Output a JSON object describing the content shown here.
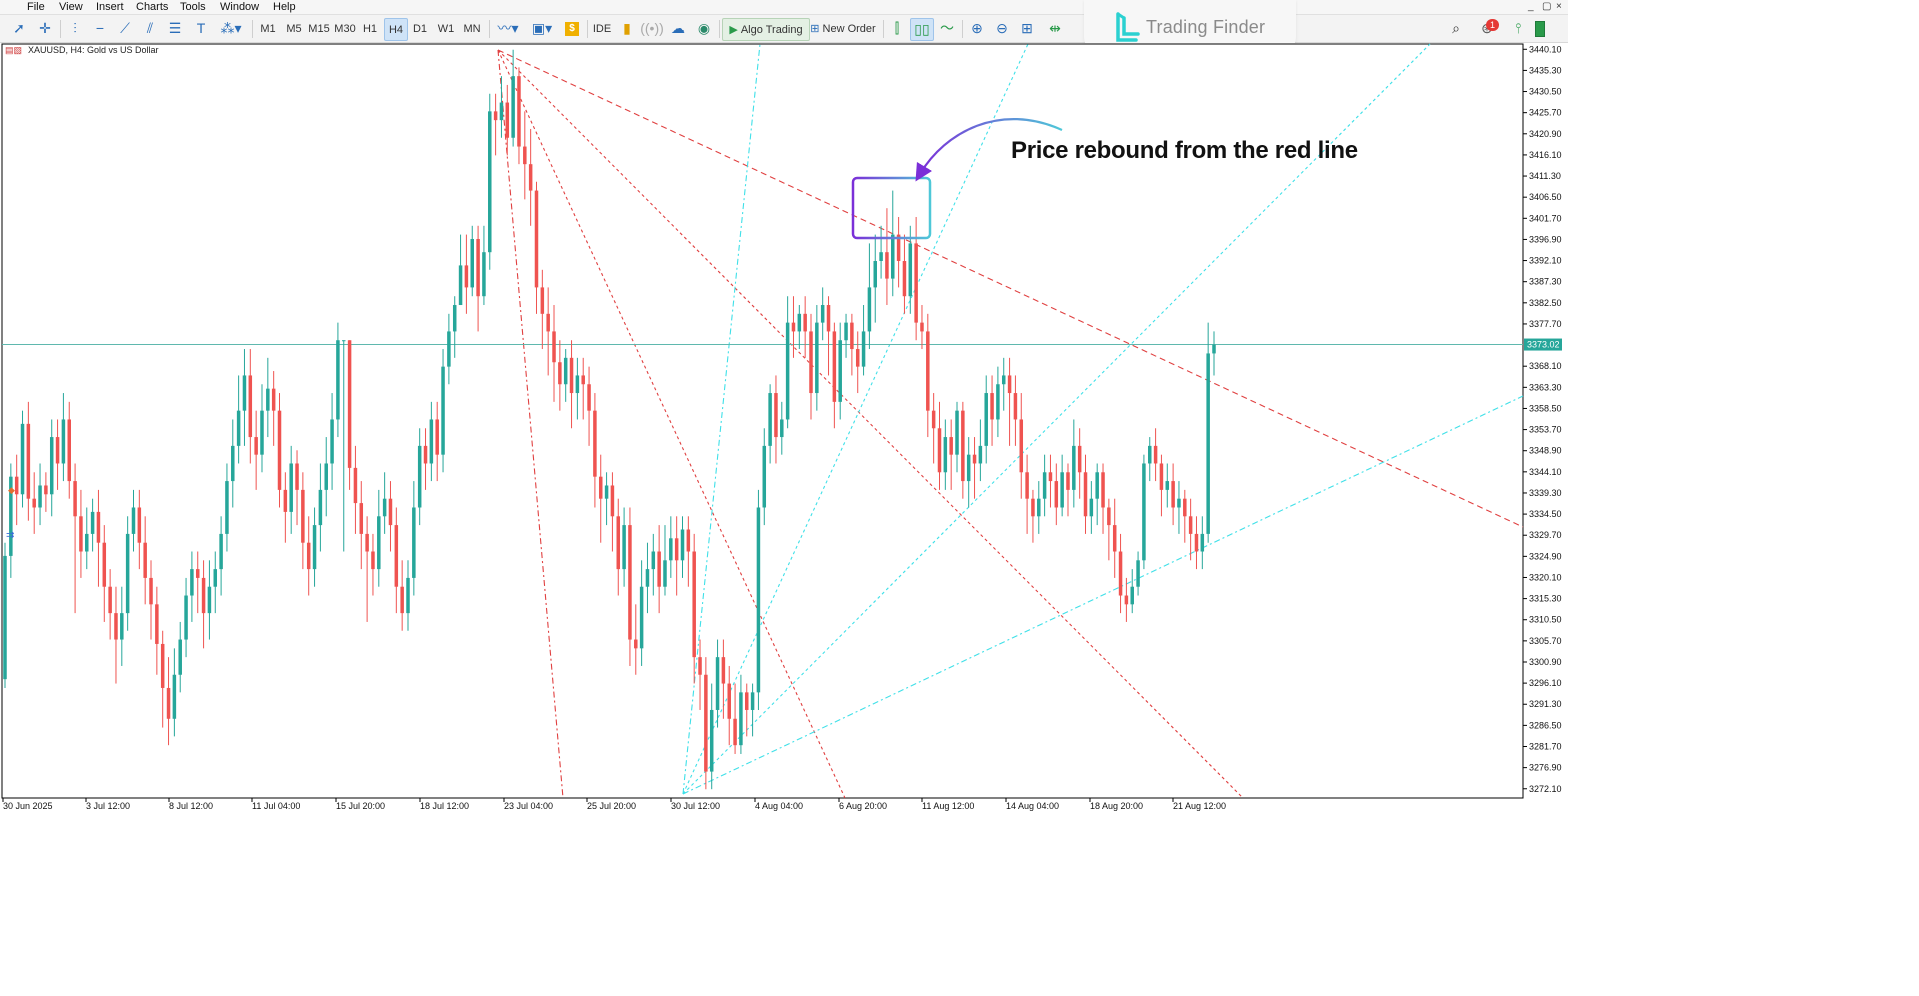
{
  "menu": [
    "File",
    "View",
    "Insert",
    "Charts",
    "Tools",
    "Window",
    "Help"
  ],
  "window_controls": [
    "_",
    "▢",
    "×"
  ],
  "toolbar": {
    "timeframes": [
      "M1",
      "M5",
      "M15",
      "M30",
      "H1",
      "H4",
      "D1",
      "W1",
      "MN"
    ],
    "selected_timeframe": "H4",
    "ide_label": "IDE",
    "algo_label": "Algo Trading",
    "order_label": "New Order",
    "notification_count": "1"
  },
  "brand": {
    "name": "Trading Finder",
    "color": "#2bd1d1"
  },
  "chart_header": {
    "symbol_text": "XAUUSD, H4:  Gold vs US Dollar"
  },
  "annotation": {
    "text": "Price rebound from the red line"
  },
  "colors": {
    "bull": "#26a69a",
    "bear": "#ef5350",
    "red_lines": "#e04040",
    "cyan_lines": "#3fe0e8",
    "hline": "#5fb8ae",
    "price_tag_bg": "#26a69a",
    "box_left": "#7b2fd8",
    "box_right": "#4ec8d8"
  },
  "chart_data": {
    "type": "candlestick",
    "symbol": "XAUUSD",
    "timeframe": "H4",
    "y_ticks": [
      "3440.10",
      "3435.30",
      "3430.50",
      "3425.70",
      "3420.90",
      "3416.10",
      "3411.30",
      "3406.50",
      "3401.70",
      "3396.90",
      "3392.10",
      "3387.30",
      "3382.50",
      "3377.70",
      "3373.02",
      "3368.10",
      "3363.30",
      "3358.50",
      "3353.70",
      "3348.90",
      "3344.10",
      "3339.30",
      "3334.50",
      "3329.70",
      "3324.90",
      "3320.10",
      "3315.30",
      "3310.50",
      "3305.70",
      "3300.90",
      "3296.10",
      "3291.30",
      "3286.50",
      "3281.70",
      "3276.90",
      "3272.10"
    ],
    "x_ticks": [
      "30 Jun 2025",
      "3 Jul 12:00",
      "8 Jul 12:00",
      "11 Jul 04:00",
      "15 Jul 20:00",
      "18 Jul 12:00",
      "23 Jul 04:00",
      "25 Jul 20:00",
      "30 Jul 12:00",
      "4 Aug 04:00",
      "6 Aug 20:00",
      "11 Aug 12:00",
      "14 Aug 04:00",
      "18 Aug 20:00",
      "21 Aug 12:00"
    ],
    "current_price": "3373.02",
    "ylim": [
      3270,
      3441
    ],
    "candles": [
      [
        3297,
        3325,
        3295,
        3328
      ],
      [
        3325,
        3343,
        3320,
        3346
      ],
      [
        3343,
        3339,
        3332,
        3348
      ],
      [
        3339,
        3355,
        3336,
        3358
      ],
      [
        3355,
        3338,
        3333,
        3360
      ],
      [
        3338,
        3336,
        3330,
        3344
      ],
      [
        3336,
        3341,
        3332,
        3346
      ],
      [
        3341,
        3339,
        3335,
        3344
      ],
      [
        3339,
        3352,
        3334,
        3356
      ],
      [
        3352,
        3346,
        3340,
        3356
      ],
      [
        3346,
        3356,
        3342,
        3362
      ],
      [
        3356,
        3342,
        3338,
        3360
      ],
      [
        3342,
        3334,
        3312,
        3346
      ],
      [
        3334,
        3326,
        3320,
        3340
      ],
      [
        3326,
        3330,
        3322,
        3336
      ],
      [
        3330,
        3335,
        3326,
        3338
      ],
      [
        3335,
        3328,
        3318,
        3340
      ],
      [
        3328,
        3318,
        3310,
        3332
      ],
      [
        3318,
        3312,
        3306,
        3322
      ],
      [
        3312,
        3306,
        3296,
        3318
      ],
      [
        3306,
        3312,
        3300,
        3318
      ],
      [
        3312,
        3330,
        3308,
        3334
      ],
      [
        3330,
        3336,
        3326,
        3340
      ],
      [
        3336,
        3328,
        3322,
        3340
      ],
      [
        3328,
        3320,
        3314,
        3334
      ],
      [
        3320,
        3314,
        3306,
        3324
      ],
      [
        3314,
        3305,
        3298,
        3318
      ],
      [
        3305,
        3295,
        3286,
        3308
      ],
      [
        3295,
        3288,
        3282,
        3302
      ],
      [
        3288,
        3298,
        3284,
        3304
      ],
      [
        3298,
        3306,
        3294,
        3310
      ],
      [
        3306,
        3316,
        3302,
        3320
      ],
      [
        3316,
        3322,
        3310,
        3326
      ],
      [
        3322,
        3320,
        3312,
        3326
      ],
      [
        3320,
        3312,
        3304,
        3324
      ],
      [
        3312,
        3318,
        3306,
        3324
      ],
      [
        3318,
        3322,
        3312,
        3326
      ],
      [
        3322,
        3330,
        3316,
        3334
      ],
      [
        3330,
        3342,
        3326,
        3346
      ],
      [
        3342,
        3350,
        3336,
        3356
      ],
      [
        3350,
        3358,
        3346,
        3366
      ],
      [
        3358,
        3366,
        3350,
        3372
      ],
      [
        3366,
        3352,
        3346,
        3372
      ],
      [
        3352,
        3348,
        3340,
        3358
      ],
      [
        3348,
        3358,
        3344,
        3364
      ],
      [
        3358,
        3363,
        3352,
        3370
      ],
      [
        3363,
        3358,
        3350,
        3367
      ],
      [
        3358,
        3340,
        3336,
        3362
      ],
      [
        3340,
        3335,
        3328,
        3344
      ],
      [
        3335,
        3346,
        3330,
        3350
      ],
      [
        3346,
        3340,
        3332,
        3349
      ],
      [
        3340,
        3328,
        3322,
        3344
      ],
      [
        3328,
        3322,
        3316,
        3334
      ],
      [
        3322,
        3332,
        3318,
        3336
      ],
      [
        3332,
        3340,
        3326,
        3346
      ],
      [
        3340,
        3346,
        3334,
        3352
      ],
      [
        3346,
        3356,
        3340,
        3362
      ],
      [
        3356,
        3374,
        3352,
        3378
      ],
      [
        3374,
        3374,
        3326,
        3374
      ],
      [
        3374,
        3345,
        3340,
        3374
      ],
      [
        3345,
        3337,
        3330,
        3350
      ],
      [
        3337,
        3330,
        3322,
        3342
      ],
      [
        3330,
        3326,
        3310,
        3334
      ],
      [
        3326,
        3322,
        3316,
        3330
      ],
      [
        3322,
        3334,
        3318,
        3340
      ],
      [
        3334,
        3338,
        3330,
        3344
      ],
      [
        3338,
        3332,
        3326,
        3342
      ],
      [
        3332,
        3318,
        3312,
        3336
      ],
      [
        3318,
        3312,
        3308,
        3324
      ],
      [
        3312,
        3320,
        3308,
        3324
      ],
      [
        3320,
        3336,
        3316,
        3342
      ],
      [
        3336,
        3350,
        3332,
        3354
      ],
      [
        3350,
        3346,
        3340,
        3354
      ],
      [
        3346,
        3356,
        3342,
        3360
      ],
      [
        3356,
        3348,
        3342,
        3360
      ],
      [
        3348,
        3368,
        3344,
        3372
      ],
      [
        3368,
        3376,
        3364,
        3380
      ],
      [
        3376,
        3382,
        3370,
        3384
      ],
      [
        3382,
        3391,
        3382,
        3398
      ],
      [
        3391,
        3386,
        3380,
        3398
      ],
      [
        3386,
        3397,
        3384,
        3400
      ],
      [
        3397,
        3384,
        3376,
        3400
      ],
      [
        3384,
        3394,
        3382,
        3400
      ],
      [
        3394,
        3426,
        3390,
        3430
      ],
      [
        3426,
        3424,
        3416,
        3430
      ],
      [
        3424,
        3428,
        3420,
        3434
      ],
      [
        3428,
        3420,
        3416,
        3432
      ],
      [
        3420,
        3434,
        3418,
        3440
      ],
      [
        3434,
        3418,
        3414,
        3436
      ],
      [
        3418,
        3414,
        3406,
        3426
      ],
      [
        3414,
        3408,
        3400,
        3422
      ],
      [
        3408,
        3386,
        3380,
        3410
      ],
      [
        3386,
        3380,
        3372,
        3390
      ],
      [
        3380,
        3376,
        3366,
        3386
      ],
      [
        3376,
        3369,
        3360,
        3382
      ],
      [
        3369,
        3364,
        3358,
        3374
      ],
      [
        3364,
        3370,
        3360,
        3372
      ],
      [
        3370,
        3362,
        3354,
        3374
      ],
      [
        3362,
        3366,
        3356,
        3370
      ],
      [
        3366,
        3364,
        3356,
        3370
      ],
      [
        3364,
        3358,
        3350,
        3368
      ],
      [
        3358,
        3343,
        3336,
        3362
      ],
      [
        3343,
        3338,
        3328,
        3348
      ],
      [
        3338,
        3341,
        3332,
        3344
      ],
      [
        3341,
        3334,
        3326,
        3344
      ],
      [
        3334,
        3322,
        3316,
        3338
      ],
      [
        3322,
        3332,
        3318,
        3336
      ],
      [
        3332,
        3306,
        3300,
        3336
      ],
      [
        3306,
        3304,
        3298,
        3314
      ],
      [
        3304,
        3318,
        3300,
        3324
      ],
      [
        3318,
        3322,
        3312,
        3328
      ],
      [
        3322,
        3326,
        3316,
        3330
      ],
      [
        3326,
        3318,
        3312,
        3332
      ],
      [
        3318,
        3324,
        3316,
        3332
      ],
      [
        3324,
        3329,
        3320,
        3334
      ],
      [
        3329,
        3324,
        3316,
        3334
      ],
      [
        3324,
        3331,
        3320,
        3334
      ],
      [
        3331,
        3326,
        3318,
        3334
      ],
      [
        3326,
        3302,
        3296,
        3330
      ],
      [
        3302,
        3298,
        3290,
        3306
      ],
      [
        3298,
        3276,
        3272,
        3302
      ],
      [
        3276,
        3290,
        3272,
        3296
      ],
      [
        3290,
        3302,
        3286,
        3306
      ],
      [
        3302,
        3296,
        3288,
        3306
      ],
      [
        3296,
        3288,
        3282,
        3300
      ],
      [
        3288,
        3282,
        3280,
        3296
      ],
      [
        3282,
        3294,
        3280,
        3298
      ],
      [
        3294,
        3290,
        3284,
        3296
      ],
      [
        3290,
        3294,
        3284,
        3296
      ],
      [
        3294,
        3336,
        3290,
        3340
      ],
      [
        3336,
        3350,
        3332,
        3354
      ],
      [
        3350,
        3362,
        3346,
        3364
      ],
      [
        3362,
        3352,
        3346,
        3366
      ],
      [
        3352,
        3356,
        3348,
        3360
      ],
      [
        3356,
        3378,
        3354,
        3384
      ],
      [
        3378,
        3376,
        3370,
        3384
      ],
      [
        3376,
        3380,
        3372,
        3382
      ],
      [
        3380,
        3376,
        3370,
        3384
      ],
      [
        3376,
        3362,
        3356,
        3380
      ],
      [
        3362,
        3378,
        3358,
        3382
      ],
      [
        3378,
        3382,
        3374,
        3386
      ],
      [
        3382,
        3376,
        3366,
        3384
      ],
      [
        3376,
        3360,
        3354,
        3378
      ],
      [
        3360,
        3374,
        3356,
        3378
      ],
      [
        3374,
        3378,
        3370,
        3380
      ],
      [
        3378,
        3372,
        3366,
        3380
      ],
      [
        3372,
        3368,
        3362,
        3376
      ],
      [
        3368,
        3376,
        3366,
        3382
      ],
      [
        3376,
        3386,
        3372,
        3396
      ],
      [
        3386,
        3392,
        3378,
        3398
      ],
      [
        3392,
        3394,
        3388,
        3400
      ],
      [
        3394,
        3388,
        3382,
        3404
      ],
      [
        3388,
        3398,
        3384,
        3408
      ],
      [
        3398,
        3392,
        3386,
        3402
      ],
      [
        3392,
        3384,
        3380,
        3398
      ],
      [
        3384,
        3396,
        3380,
        3400
      ],
      [
        3396,
        3378,
        3374,
        3402
      ],
      [
        3378,
        3376,
        3372,
        3382
      ],
      [
        3376,
        3358,
        3352,
        3380
      ],
      [
        3358,
        3354,
        3346,
        3362
      ],
      [
        3354,
        3344,
        3340,
        3360
      ],
      [
        3344,
        3352,
        3340,
        3356
      ],
      [
        3352,
        3348,
        3340,
        3356
      ],
      [
        3348,
        3358,
        3344,
        3360
      ],
      [
        3358,
        3342,
        3338,
        3360
      ],
      [
        3342,
        3348,
        3336,
        3352
      ],
      [
        3348,
        3346,
        3338,
        3352
      ],
      [
        3346,
        3350,
        3342,
        3356
      ],
      [
        3350,
        3362,
        3346,
        3366
      ],
      [
        3362,
        3356,
        3350,
        3366
      ],
      [
        3356,
        3364,
        3352,
        3368
      ],
      [
        3364,
        3366,
        3358,
        3370
      ],
      [
        3366,
        3362,
        3350,
        3370
      ],
      [
        3362,
        3356,
        3350,
        3366
      ],
      [
        3356,
        3344,
        3338,
        3362
      ],
      [
        3344,
        3338,
        3330,
        3348
      ],
      [
        3338,
        3334,
        3328,
        3340
      ],
      [
        3334,
        3338,
        3330,
        3342
      ],
      [
        3338,
        3344,
        3334,
        3348
      ],
      [
        3344,
        3342,
        3336,
        3348
      ],
      [
        3342,
        3336,
        3332,
        3346
      ],
      [
        3336,
        3344,
        3334,
        3348
      ],
      [
        3344,
        3340,
        3334,
        3346
      ],
      [
        3340,
        3350,
        3336,
        3356
      ],
      [
        3350,
        3344,
        3338,
        3354
      ],
      [
        3344,
        3334,
        3330,
        3348
      ],
      [
        3334,
        3338,
        3330,
        3342
      ],
      [
        3338,
        3344,
        3332,
        3346
      ],
      [
        3344,
        3336,
        3330,
        3346
      ],
      [
        3336,
        3332,
        3324,
        3338
      ],
      [
        3332,
        3326,
        3320,
        3338
      ],
      [
        3326,
        3316,
        3312,
        3330
      ],
      [
        3316,
        3314,
        3310,
        3320
      ],
      [
        3314,
        3318,
        3312,
        3322
      ],
      [
        3318,
        3324,
        3316,
        3326
      ],
      [
        3324,
        3346,
        3322,
        3348
      ],
      [
        3346,
        3350,
        3342,
        3352
      ],
      [
        3350,
        3346,
        3342,
        3354
      ],
      [
        3346,
        3340,
        3334,
        3348
      ],
      [
        3340,
        3342,
        3336,
        3346
      ],
      [
        3342,
        3336,
        3332,
        3346
      ],
      [
        3336,
        3338,
        3330,
        3342
      ],
      [
        3338,
        3334,
        3328,
        3340
      ],
      [
        3334,
        3330,
        3324,
        3338
      ],
      [
        3330,
        3326,
        3322,
        3334
      ],
      [
        3326,
        3330,
        3322,
        3334
      ],
      [
        3330,
        3371,
        3328,
        3378
      ],
      [
        3371,
        3373,
        3366,
        3376
      ]
    ]
  }
}
